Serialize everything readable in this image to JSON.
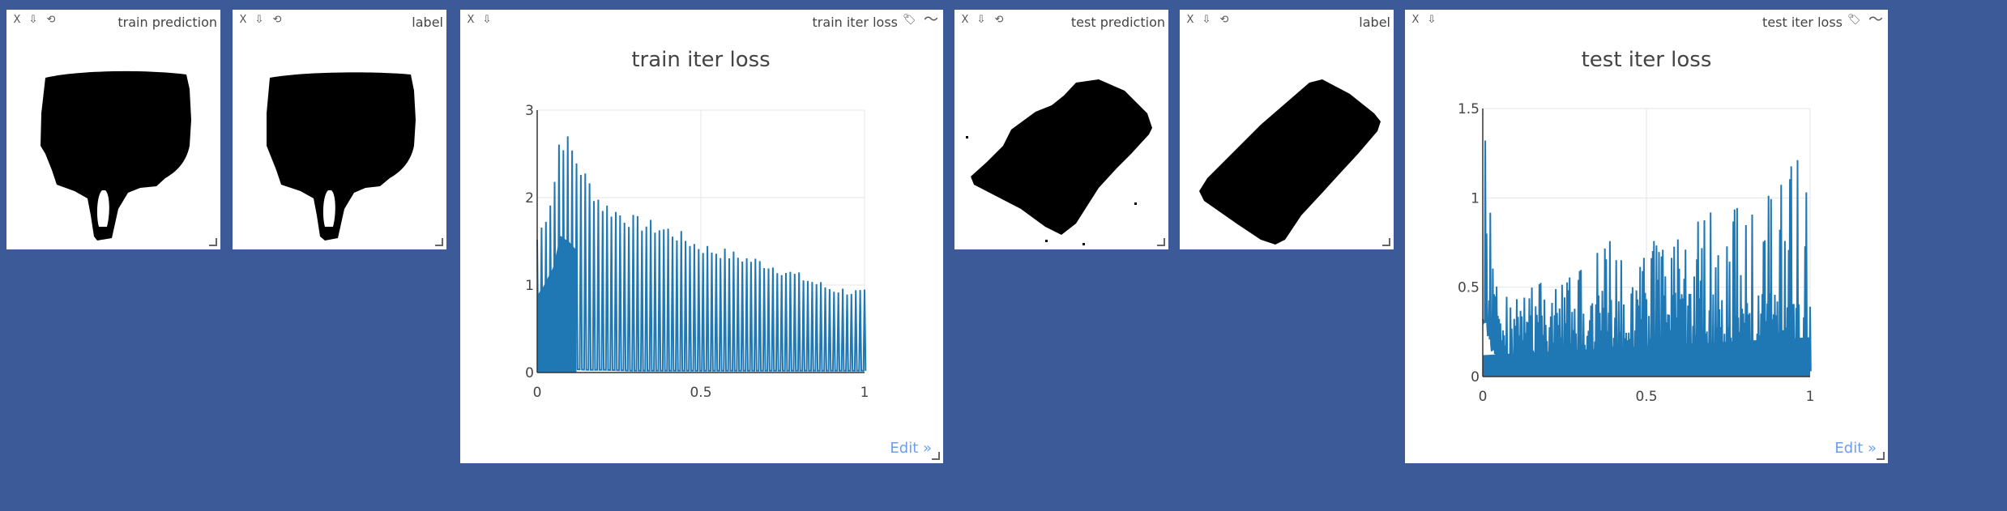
{
  "window_controls": {
    "close": "X",
    "download": "⇩",
    "reset": "⟲"
  },
  "plot_tools": {
    "tag": "🏷",
    "smooth": "〜"
  },
  "panes": {
    "train_prediction": {
      "title": "train prediction"
    },
    "train_label": {
      "title": "label"
    },
    "train_loss": {
      "title": "train iter loss",
      "edit_link": "Edit »"
    },
    "test_prediction": {
      "title": "test prediction"
    },
    "test_label": {
      "title": "label"
    },
    "test_loss": {
      "title": "test iter loss",
      "edit_link": "Edit »"
    }
  },
  "colors": {
    "background": "#3d5a98",
    "pane": "#ffffff",
    "line": "#1f77b4",
    "edit_link": "#6b9ef0"
  },
  "chart_data": [
    {
      "type": "line",
      "title": "train iter loss",
      "xlabel": "",
      "ylabel": "",
      "xlim": [
        0,
        1
      ],
      "ylim": [
        0,
        3
      ],
      "x_ticks": [
        "0",
        "0.5",
        "1"
      ],
      "y_ticks": [
        "0",
        "1",
        "2",
        "3"
      ],
      "grid": true,
      "series": [
        {
          "description": "dense spiky loss series; envelope of peaks",
          "x": [
            0,
            0.02,
            0.05,
            0.07,
            0.1,
            0.15,
            0.2,
            0.3,
            0.4,
            0.5,
            0.6,
            0.7,
            0.8,
            0.9,
            1.0
          ],
          "peak": [
            1.6,
            1.8,
            2.2,
            2.85,
            2.7,
            2.3,
            2.0,
            1.8,
            1.7,
            1.5,
            1.4,
            1.3,
            1.15,
            1.0,
            0.95
          ],
          "baseline": [
            0.3,
            0.15,
            0.08,
            0.05,
            0.04,
            0.03,
            0.03,
            0.02,
            0.02,
            0.02,
            0.02,
            0.02,
            0.02,
            0.02,
            0.02
          ]
        }
      ]
    },
    {
      "type": "line",
      "title": "test iter loss",
      "xlabel": "",
      "ylabel": "",
      "xlim": [
        0,
        1
      ],
      "ylim": [
        0,
        1.5
      ],
      "x_ticks": [
        "0",
        "0.5",
        "1"
      ],
      "y_ticks": [
        "0",
        "0.5",
        "1",
        "1.5"
      ],
      "grid": true,
      "series": [
        {
          "description": "dense noisy loss series; envelope of peaks",
          "x": [
            0,
            0.01,
            0.02,
            0.05,
            0.1,
            0.2,
            0.3,
            0.4,
            0.5,
            0.6,
            0.7,
            0.8,
            0.9,
            0.97,
            1.0
          ],
          "peak": [
            1.2,
            1.45,
            1.1,
            0.5,
            0.55,
            0.6,
            0.65,
            0.8,
            0.75,
            0.85,
            0.95,
            1.0,
            1.05,
            1.35,
            1.0
          ],
          "baseline": [
            0.3,
            0.3,
            0.2,
            0.05,
            0.04,
            0.03,
            0.03,
            0.03,
            0.03,
            0.03,
            0.03,
            0.03,
            0.03,
            0.03,
            0.03
          ]
        }
      ]
    }
  ]
}
